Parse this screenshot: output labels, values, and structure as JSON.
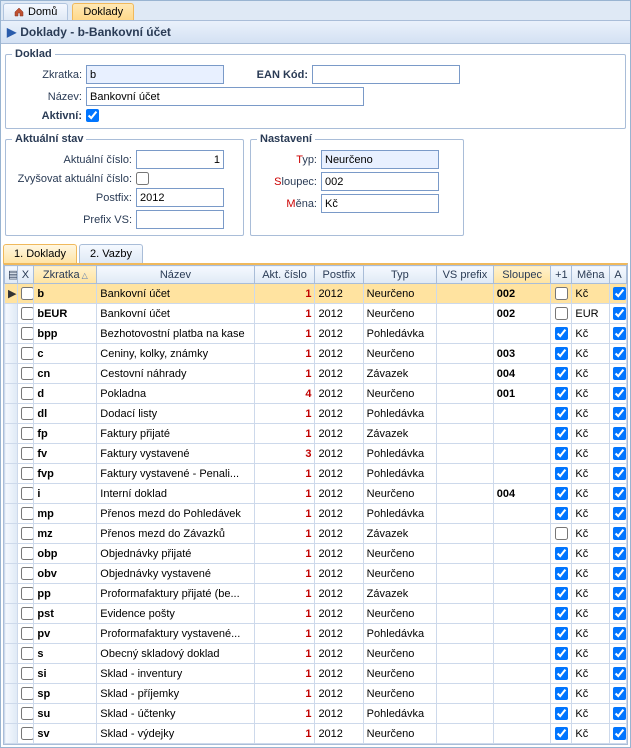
{
  "tabs": {
    "home": "Domů",
    "doklady": "Doklady"
  },
  "title": "Doklady - b-Bankovní účet",
  "section_doklad": "Doklad",
  "labels": {
    "zkratka": "Zkratka:",
    "ean": "EAN Kód:",
    "nazev": "Název:",
    "aktivni": "Aktivní:"
  },
  "values": {
    "zkratka": "b",
    "ean": "",
    "nazev": "Bankovní účet",
    "aktivni": true
  },
  "section_stav": "Aktuální stav",
  "stav": {
    "akt_cislo_lbl": "Aktuální číslo:",
    "akt_cislo": "1",
    "zvysovat_lbl": "Zvyšovat aktuální číslo:",
    "zvysovat": false,
    "postfix_lbl": "Postfix:",
    "postfix": "2012",
    "prefixvs_lbl": "Prefix VS:",
    "prefixvs": ""
  },
  "section_nast": "Nastavení",
  "nast": {
    "typ_lbl": "Typ:",
    "typ": "Neurčeno",
    "sloupec_lbl": "Sloupec:",
    "sloupec": "002",
    "mena_lbl": "Měna:",
    "mena": "Kč",
    "typ_t": "T",
    "sloup_s": "S",
    "mena_m": "M"
  },
  "subtabs": {
    "doklady": "1. Doklady",
    "vazby": "2. Vazby"
  },
  "grid": {
    "cols": {
      "x": "X",
      "zkratka": "Zkratka",
      "nazev": "Název",
      "akt": "Akt. číslo",
      "postfix": "Postfix",
      "typ": "Typ",
      "vsprefix": "VS prefix",
      "sloupec": "Sloupec",
      "plus1": "+1",
      "mena": "Měna",
      "a": "A"
    },
    "rows": [
      {
        "sel": true,
        "x": false,
        "zk": "b",
        "nz": "Bankovní účet",
        "ak": "1",
        "pf": "2012",
        "ty": "Neurčeno",
        "vs": "",
        "sl": "002",
        "p1": false,
        "mn": "Kč",
        "a": true
      },
      {
        "x": false,
        "zk": "bEUR",
        "nz": "Bankovní účet",
        "ak": "1",
        "pf": "2012",
        "ty": "Neurčeno",
        "vs": "",
        "sl": "002",
        "p1": false,
        "mn": "EUR",
        "a": true
      },
      {
        "x": false,
        "zk": "bpp",
        "nz": "Bezhotovostní platba na kase",
        "ak": "1",
        "pf": "2012",
        "ty": "Pohledávka",
        "vs": "",
        "sl": "",
        "p1": true,
        "mn": "Kč",
        "a": true
      },
      {
        "x": false,
        "zk": "c",
        "nz": "Ceniny, kolky, známky",
        "ak": "1",
        "pf": "2012",
        "ty": "Neurčeno",
        "vs": "",
        "sl": "003",
        "p1": true,
        "mn": "Kč",
        "a": true
      },
      {
        "x": false,
        "zk": "cn",
        "nz": "Cestovní náhrady",
        "ak": "1",
        "pf": "2012",
        "ty": "Závazek",
        "vs": "",
        "sl": "004",
        "p1": true,
        "mn": "Kč",
        "a": true
      },
      {
        "x": false,
        "zk": "d",
        "nz": "Pokladna",
        "ak": "4",
        "pf": "2012",
        "ty": "Neurčeno",
        "vs": "",
        "sl": "001",
        "p1": true,
        "mn": "Kč",
        "a": true
      },
      {
        "x": false,
        "zk": "dl",
        "nz": "Dodací listy",
        "ak": "1",
        "pf": "2012",
        "ty": "Pohledávka",
        "vs": "",
        "sl": "",
        "p1": true,
        "mn": "Kč",
        "a": true
      },
      {
        "x": false,
        "zk": "fp",
        "nz": "Faktury přijaté",
        "ak": "1",
        "pf": "2012",
        "ty": "Závazek",
        "vs": "",
        "sl": "",
        "p1": true,
        "mn": "Kč",
        "a": true
      },
      {
        "x": false,
        "zk": "fv",
        "nz": "Faktury vystavené",
        "ak": "3",
        "pf": "2012",
        "ty": "Pohledávka",
        "vs": "",
        "sl": "",
        "p1": true,
        "mn": "Kč",
        "a": true
      },
      {
        "x": false,
        "zk": "fvp",
        "nz": "Faktury vystavené - Penali...",
        "ak": "1",
        "pf": "2012",
        "ty": "Pohledávka",
        "vs": "",
        "sl": "",
        "p1": true,
        "mn": "Kč",
        "a": true
      },
      {
        "x": false,
        "zk": "i",
        "nz": "Interní doklad",
        "ak": "1",
        "pf": "2012",
        "ty": "Neurčeno",
        "vs": "",
        "sl": "004",
        "p1": true,
        "mn": "Kč",
        "a": true
      },
      {
        "x": false,
        "zk": "mp",
        "nz": "Přenos mezd do Pohledávek",
        "ak": "1",
        "pf": "2012",
        "ty": "Pohledávka",
        "vs": "",
        "sl": "",
        "p1": true,
        "mn": "Kč",
        "a": true
      },
      {
        "x": false,
        "zk": "mz",
        "nz": "Přenos mezd do Závazků",
        "ak": "1",
        "pf": "2012",
        "ty": "Závazek",
        "vs": "",
        "sl": "",
        "p1": false,
        "mn": "Kč",
        "a": true
      },
      {
        "x": false,
        "zk": "obp",
        "nz": "Objednávky přijaté",
        "ak": "1",
        "pf": "2012",
        "ty": "Neurčeno",
        "vs": "",
        "sl": "",
        "p1": true,
        "mn": "Kč",
        "a": true
      },
      {
        "x": false,
        "zk": "obv",
        "nz": "Objednávky vystavené",
        "ak": "1",
        "pf": "2012",
        "ty": "Neurčeno",
        "vs": "",
        "sl": "",
        "p1": true,
        "mn": "Kč",
        "a": true
      },
      {
        "x": false,
        "zk": "pp",
        "nz": "Proformafaktury přijaté (be...",
        "ak": "1",
        "pf": "2012",
        "ty": "Závazek",
        "vs": "",
        "sl": "",
        "p1": true,
        "mn": "Kč",
        "a": true
      },
      {
        "x": false,
        "zk": "pst",
        "nz": "Evidence pošty",
        "ak": "1",
        "pf": "2012",
        "ty": "Neurčeno",
        "vs": "",
        "sl": "",
        "p1": true,
        "mn": "Kč",
        "a": true
      },
      {
        "x": false,
        "zk": "pv",
        "nz": "Proformafaktury vystavené...",
        "ak": "1",
        "pf": "2012",
        "ty": "Pohledávka",
        "vs": "",
        "sl": "",
        "p1": true,
        "mn": "Kč",
        "a": true
      },
      {
        "x": false,
        "zk": "s",
        "nz": "Obecný skladový doklad",
        "ak": "1",
        "pf": "2012",
        "ty": "Neurčeno",
        "vs": "",
        "sl": "",
        "p1": true,
        "mn": "Kč",
        "a": true
      },
      {
        "x": false,
        "zk": "si",
        "nz": "Sklad - inventury",
        "ak": "1",
        "pf": "2012",
        "ty": "Neurčeno",
        "vs": "",
        "sl": "",
        "p1": true,
        "mn": "Kč",
        "a": true
      },
      {
        "x": false,
        "zk": "sp",
        "nz": "Sklad - příjemky",
        "ak": "1",
        "pf": "2012",
        "ty": "Neurčeno",
        "vs": "",
        "sl": "",
        "p1": true,
        "mn": "Kč",
        "a": true
      },
      {
        "x": false,
        "zk": "su",
        "nz": "Sklad - účtenky",
        "ak": "1",
        "pf": "2012",
        "ty": "Pohledávka",
        "vs": "",
        "sl": "",
        "p1": true,
        "mn": "Kč",
        "a": true
      },
      {
        "x": false,
        "zk": "sv",
        "nz": "Sklad - výdejky",
        "ak": "1",
        "pf": "2012",
        "ty": "Neurčeno",
        "vs": "",
        "sl": "",
        "p1": true,
        "mn": "Kč",
        "a": true
      }
    ]
  }
}
